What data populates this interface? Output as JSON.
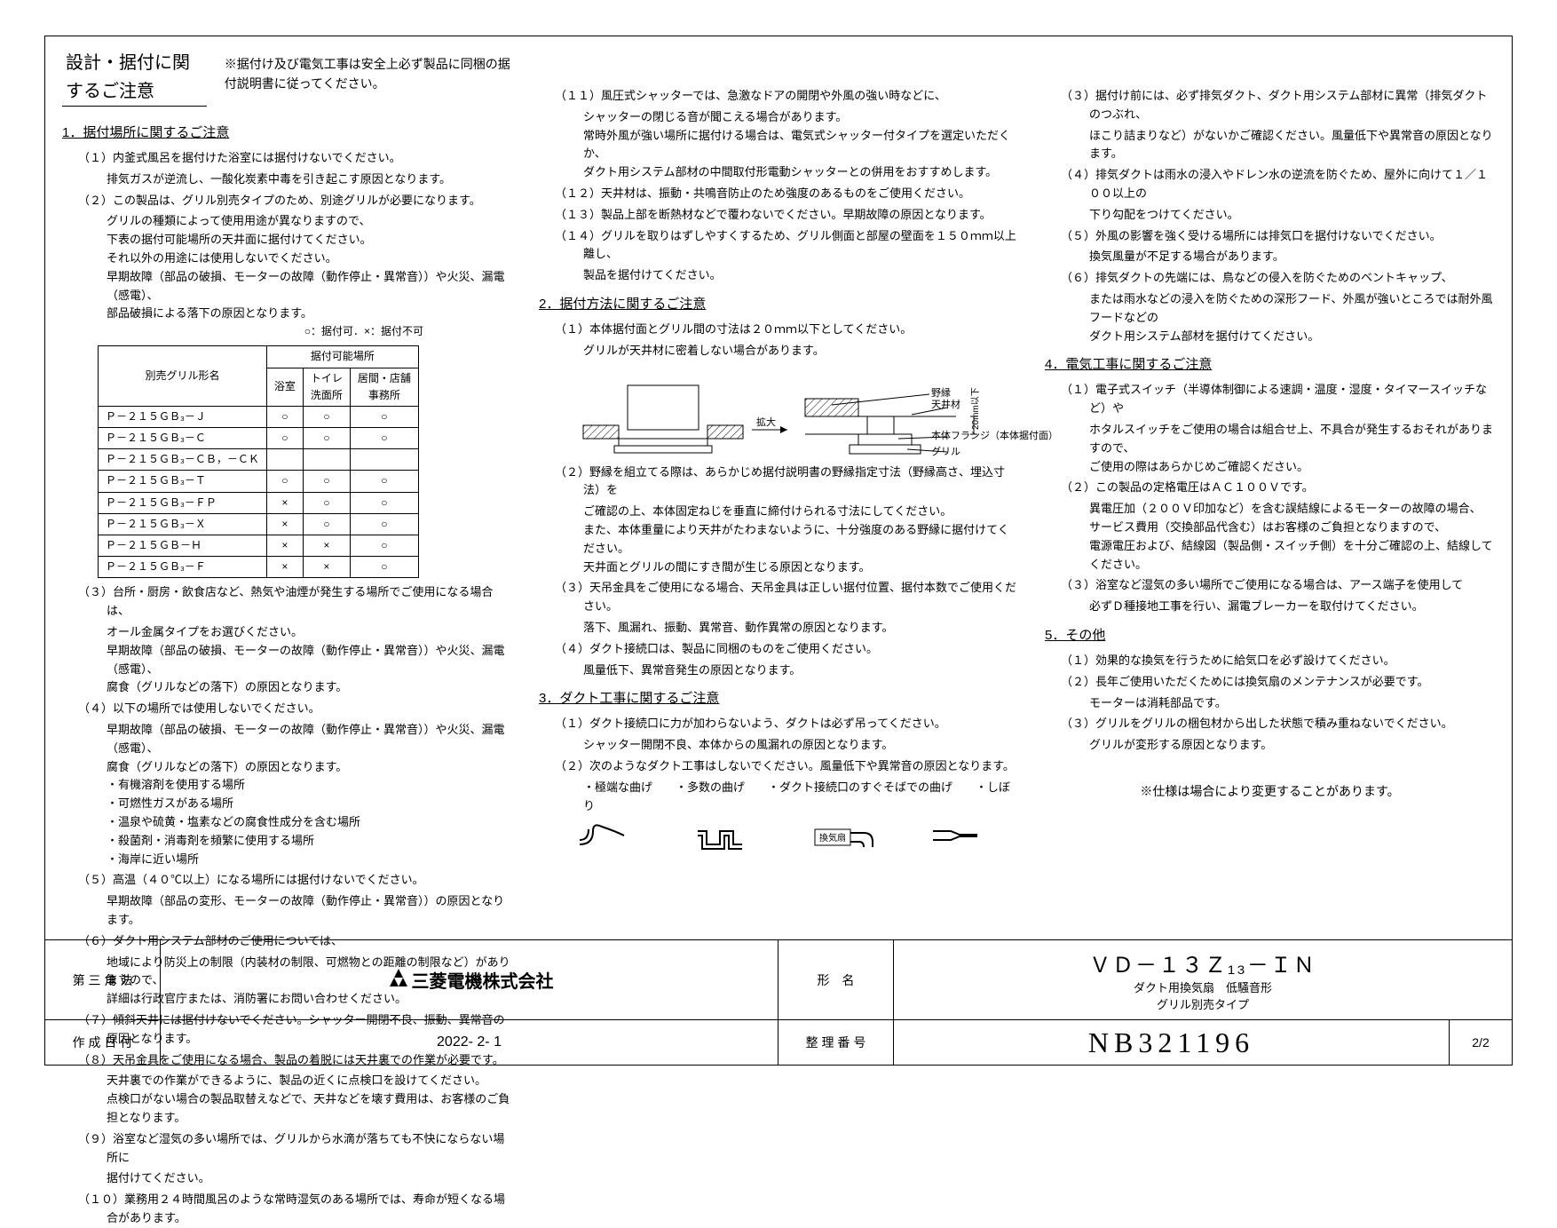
{
  "header": {
    "title": "設計・据付に関するご注意",
    "note": "※据付け及び電気工事は安全上必ず製品に同梱の据付説明書に従ってください。"
  },
  "sec1": {
    "title": "1．据付場所に関するご注意",
    "i1": "（１）内釜式風呂を据付けた浴室には据付けないでください。",
    "i1b": "排気ガスが逆流し、一酸化炭素中毒を引き起こす原因となります。",
    "i2": "（２）この製品は、グリル別売タイプのため、別途グリルが必要になります。",
    "i2b": "グリルの種類によって使用用途が異なりますので、",
    "i2c": "下表の据付可能場所の天井面に据付けてください。",
    "i2d": "それ以外の用途には使用しないでください。",
    "i2e": "早期故障（部品の破損、モーターの故障（動作停止・異常音））や火災、漏電（感電）、",
    "i2f": "部品破損による落下の原因となります。",
    "legend": "○：据付可．×：据付不可",
    "table": {
      "h1": "別売グリル形名",
      "h2": "据付可能場所",
      "c1": "浴室",
      "c2": "トイレ\n洗面所",
      "c3": "居間・店舗\n事務所",
      "rows": [
        [
          "Ｐ－２１５ＧＢ₃－Ｊ",
          "○",
          "○",
          "○"
        ],
        [
          "Ｐ－２１５ＧＢ₃－Ｃ",
          "○",
          "○",
          "○"
        ],
        [
          "Ｐ－２１５ＧＢ₃－ＣＢ，－ＣＫ",
          "",
          "",
          ""
        ],
        [
          "Ｐ－２１５ＧＢ₃－Ｔ",
          "○",
          "○",
          "○"
        ],
        [
          "Ｐ－２１５ＧＢ₃－ＦＰ",
          "×",
          "○",
          "○"
        ],
        [
          "Ｐ－２１５ＧＢ₃－Ｘ",
          "×",
          "○",
          "○"
        ],
        [
          "Ｐ－２１５ＧＢ－Ｈ",
          "×",
          "×",
          "○"
        ],
        [
          "Ｐ－２１５ＧＢ₃－Ｆ",
          "×",
          "×",
          "○"
        ]
      ]
    },
    "i3": "（３）台所・厨房・飲食店など、熱気や油煙が発生する場所でご使用になる場合は、",
    "i3b": "オール金属タイプをお選びください。",
    "i3c": "早期故障（部品の破損、モーターの故障（動作停止・異常音））や火災、漏電（感電）、",
    "i3d": "腐食（グリルなどの落下）の原因となります。",
    "i4": "（４）以下の場所では使用しないでください。",
    "i4b": "早期故障（部品の破損、モーターの故障（動作停止・異常音））や火災、漏電（感電）、",
    "i4c": "腐食（グリルなどの落下）の原因となります。",
    "i4l1": "・有機溶剤を使用する場所",
    "i4l2": "・可燃性ガスがある場所",
    "i4l3": "・温泉や硫黄・塩素などの腐食性成分を含む場所",
    "i4l4": "・殺菌剤・消毒剤を頻繁に使用する場所",
    "i4l5": "・海岸に近い場所",
    "i5": "（５）高温（４０℃以上）になる場所には据付けないでください。",
    "i5b": "早期故障（部品の変形、モーターの故障（動作停止・異常音））の原因となります。",
    "i6": "（６）ダクト用システム部材のご使用については、",
    "i6b": "地域により防災上の制限（内装材の制限、可燃物との距離の制限など）がありますので、",
    "i6c": "詳細は行政官庁または、消防署にお問い合わせください。",
    "i7": "（７）傾斜天井には据付けないでください。シャッター開閉不良、振動、異常音の原因となります。",
    "i8": "（８）天吊金具をご使用になる場合、製品の着脱には天井裏での作業が必要です。",
    "i8b": "天井裏での作業ができるように、製品の近くに点検口を設けてください。",
    "i8c": "点検口がない場合の製品取替えなどで、天井などを壊す費用は、お客様のご負担となります。",
    "i9": "（９）浴室など湿気の多い場所では、グリルから水滴が落ちても不快にならない場所に",
    "i9b": "据付けてください。",
    "i10": "（１０）業務用２４時間風呂のような常時湿気のある場所では、寿命が短くなる場合があります。"
  },
  "col2": {
    "i11": "（１１）風圧式シャッターでは、急激なドアの開閉や外風の強い時などに、",
    "i11b": "シャッターの閉じる音が聞こえる場合があります。",
    "i11c": "常時外風が強い場所に据付ける場合は、電気式シャッター付タイプを選定いただくか、",
    "i11d": "ダクト用システム部材の中間取付形電動シャッターとの併用をおすすめします。",
    "i12": "（１２）天井材は、振動・共鳴音防止のため強度のあるものをご使用ください。",
    "i13": "（１３）製品上部を断熱材などで覆わないでください。早期故障の原因となります。",
    "i14": "（１４）グリルを取りはずしやすくするため、グリル側面と部屋の壁面を１５０ｍｍ以上離し、",
    "i14b": "製品を据付けてください。",
    "sec2": "2．据付方法に関するご注意",
    "s2i1": "（１）本体据付面とグリル間の寸法は２０ｍｍ以下としてください。",
    "s2i1b": "グリルが天井材に密着しない場合があります。",
    "lbl_nobuchi": "野縁",
    "lbl_tenjo": "天井材",
    "lbl_flange": "本体フランジ（本体据付面）",
    "lbl_grill": "グリル",
    "lbl_20mm": "20mm以下",
    "lbl_zoom": "拡大",
    "s2i2": "（２）野縁を組立てる際は、あらかじめ据付説明書の野縁指定寸法（野縁高さ、埋込寸法）を",
    "s2i2b": "ご確認の上、本体固定ねじを垂直に締付けられる寸法にしてください。",
    "s2i2c": "また、本体重量により天井がたわまないように、十分強度のある野縁に据付けてください。",
    "s2i2d": "天井面とグリルの間にすき間が生じる原因となります。",
    "s2i3": "（３）天吊金具をご使用になる場合、天吊金具は正しい据付位置、据付本数でご使用ください。",
    "s2i3b": "落下、風漏れ、振動、異常音、動作異常の原因となります。",
    "s2i4": "（４）ダクト接続口は、製品に同梱のものをご使用ください。",
    "s2i4b": "風量低下、異常音発生の原因となります。",
    "sec3": "3．ダクト工事に関するご注意",
    "s3i1": "（１）ダクト接続口に力が加わらないよう、ダクトは必ず吊ってください。",
    "s3i1b": "シャッター開閉不良、本体からの風漏れの原因となります。",
    "s3i2": "（２）次のようなダクト工事はしないでください。風量低下や異常音の原因となります。",
    "s3i2b": "・極端な曲げ　　・多数の曲げ　　・ダクト接続口のすぐそばでの曲げ　　・しぼり",
    "duct_label": "換気扇"
  },
  "col3": {
    "s3i3": "（３）据付け前には、必ず排気ダクト、ダクト用システム部材に異常（排気ダクトのつぶれ、",
    "s3i3b": "ほこり詰まりなど）がないかご確認ください。風量低下や異常音の原因となります。",
    "s3i4": "（４）排気ダクトは雨水の浸入やドレン水の逆流を防ぐため、屋外に向けて１／１００以上の",
    "s3i4b": "下り勾配をつけてください。",
    "s3i5": "（５）外風の影響を強く受ける場所には排気口を据付けないでください。",
    "s3i5b": "換気風量が不足する場合があります。",
    "s3i6": "（６）排気ダクトの先端には、鳥などの侵入を防ぐためのベントキャップ、",
    "s3i6b": "または雨水などの浸入を防ぐための深形フード、外風が強いところでは耐外風フードなどの",
    "s3i6c": "ダクト用システム部材を据付けてください。",
    "sec4": "4．電気工事に関するご注意",
    "s4i1": "（１）電子式スイッチ（半導体制御による速調・温度・湿度・タイマースイッチなど）や",
    "s4i1b": "ホタルスイッチをご使用の場合は組合せ上、不具合が発生するおそれがありますので、",
    "s4i1c": "ご使用の際はあらかじめご確認ください。",
    "s4i2": "（２）この製品の定格電圧はＡＣ１００Ｖです。",
    "s4i2b": "異電圧加（２００Ｖ印加など）を含む誤結線によるモーターの故障の場合、",
    "s4i2c": "サービス費用（交換部品代含む）はお客様のご負担となりますので、",
    "s4i2d": "電源電圧および、結線図（製品側・スイッチ側）を十分ご確認の上、結線してください。",
    "s4i3": "（３）浴室など湿気の多い場所でご使用になる場合は、アース端子を使用して",
    "s4i3b": "必ずＤ種接地工事を行い、漏電ブレーカーを取付けてください。",
    "sec5": "5．その他",
    "s5i1": "（１）効果的な換気を行うために給気口を必ず設けてください。",
    "s5i2": "（２）長年ご使用いただくためには換気扇のメンテナンスが必要です。",
    "s5i2b": "モーターは消耗部品です。",
    "s5i3": "（３）グリルをグリルの梱包材から出した状態で積み重ねないでください。",
    "s5i3b": "グリルが変形する原因となります。",
    "spec_note": "※仕様は場合により変更することがあります。"
  },
  "footer": {
    "proj_label": "第 三 角 法",
    "company": "三菱電機株式会社",
    "date_label": "作 成 日 付",
    "date": "2022- 2- 1",
    "model_label": "形　名",
    "model": "ＶＤ－１３Ｚ₁₃－ＩＮ",
    "model_sub1": "ダクト用換気扇　低騒音形",
    "model_sub2": "グリル別売タイプ",
    "docnum_label": "整 理 番 号",
    "docnum": "NB321196",
    "page": "2/2"
  },
  "colors": {
    "line": "#000000",
    "bg": "#ffffff",
    "hatch": "#000000"
  }
}
